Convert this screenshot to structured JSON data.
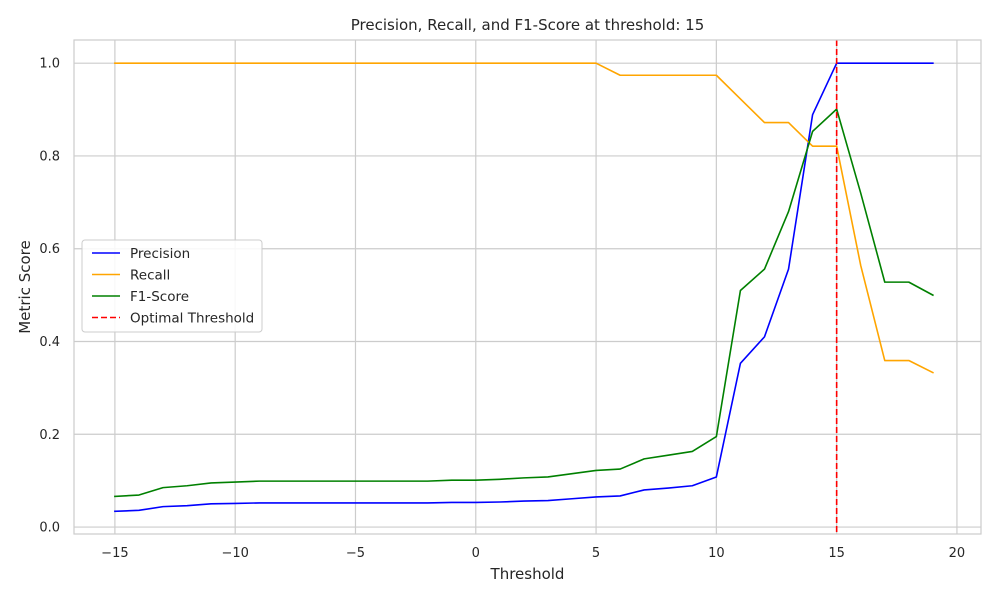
{
  "chart_data": {
    "type": "line",
    "title": "Precision, Recall, and F1-Score at threshold: 15",
    "xlabel": "Threshold",
    "ylabel": "Metric Score",
    "xlim": [
      -16.7,
      21.0
    ],
    "ylim": [
      -0.015,
      1.05
    ],
    "xticks": [
      -15,
      -10,
      -5,
      0,
      5,
      10,
      15,
      20
    ],
    "xtick_labels": [
      "−15",
      "−10",
      "−5",
      "0",
      "5",
      "10",
      "15",
      "20"
    ],
    "yticks": [
      0.0,
      0.2,
      0.4,
      0.6,
      0.8,
      1.0
    ],
    "ytick_labels": [
      "0.0",
      "0.2",
      "0.4",
      "0.6",
      "0.8",
      "1.0"
    ],
    "grid": true,
    "legend_position": "center-left",
    "x": [
      -15,
      -14,
      -13,
      -12,
      -11,
      -10,
      -9,
      -8,
      -7,
      -6,
      -5,
      -4,
      -3,
      -2,
      -1,
      0,
      1,
      2,
      3,
      4,
      5,
      6,
      7,
      8,
      9,
      10,
      11,
      12,
      13,
      14,
      15,
      16,
      17,
      18,
      19
    ],
    "series": [
      {
        "name": "Precision",
        "color": "#0000ff",
        "dash": "solid",
        "values": [
          0.034,
          0.036,
          0.044,
          0.046,
          0.05,
          0.051,
          0.052,
          0.052,
          0.052,
          0.052,
          0.052,
          0.052,
          0.052,
          0.052,
          0.053,
          0.053,
          0.054,
          0.056,
          0.057,
          0.061,
          0.065,
          0.067,
          0.08,
          0.084,
          0.089,
          0.108,
          0.353,
          0.41,
          0.556,
          0.889,
          1.0,
          1.0,
          1.0,
          1.0,
          1.0
        ]
      },
      {
        "name": "Recall",
        "color": "#ffa500",
        "dash": "solid",
        "values": [
          1.0,
          1.0,
          1.0,
          1.0,
          1.0,
          1.0,
          1.0,
          1.0,
          1.0,
          1.0,
          1.0,
          1.0,
          1.0,
          1.0,
          1.0,
          1.0,
          1.0,
          1.0,
          1.0,
          1.0,
          1.0,
          0.974,
          0.974,
          0.974,
          0.974,
          0.974,
          0.923,
          0.872,
          0.872,
          0.821,
          0.821,
          0.564,
          0.359,
          0.359,
          0.333
        ]
      },
      {
        "name": "F1-Score",
        "color": "#008000",
        "dash": "solid",
        "values": [
          0.066,
          0.069,
          0.085,
          0.089,
          0.095,
          0.097,
          0.099,
          0.099,
          0.099,
          0.099,
          0.099,
          0.099,
          0.099,
          0.099,
          0.101,
          0.101,
          0.103,
          0.106,
          0.108,
          0.115,
          0.122,
          0.125,
          0.147,
          0.155,
          0.163,
          0.195,
          0.51,
          0.556,
          0.68,
          0.853,
          0.901,
          0.72,
          0.528,
          0.528,
          0.5
        ]
      }
    ],
    "vline": {
      "name": "Optimal Threshold",
      "x": 15,
      "color": "#ff0000",
      "dash": "dashed"
    }
  }
}
